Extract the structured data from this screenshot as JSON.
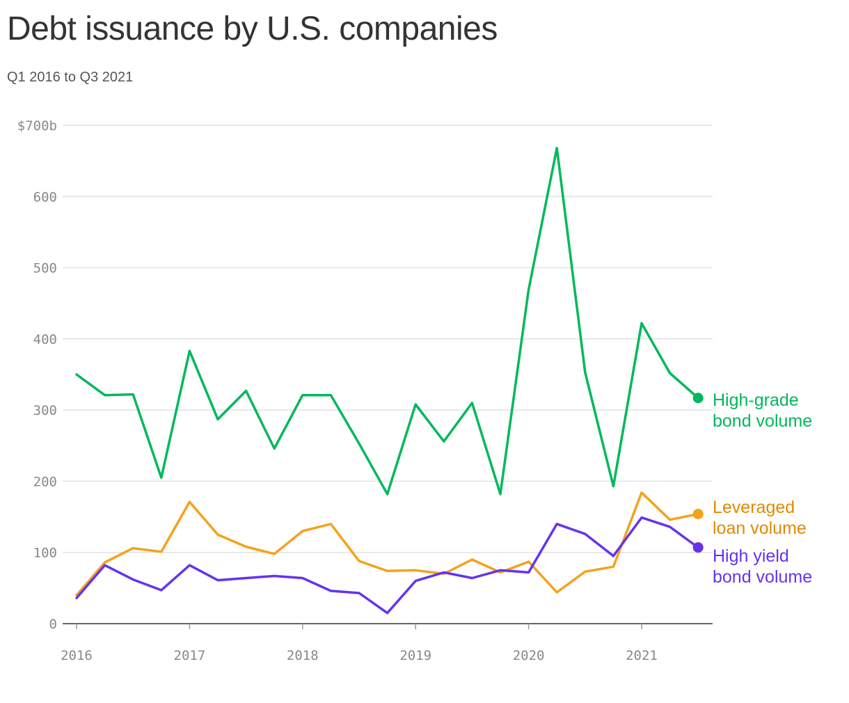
{
  "title": "Debt issuance by U.S. companies",
  "subtitle": "Q1 2016 to Q3 2021",
  "chart_data": {
    "type": "line",
    "title": "Debt issuance by U.S. companies",
    "subtitle": "Q1 2016 to Q3 2021",
    "x": [
      "Q1 2016",
      "Q2 2016",
      "Q3 2016",
      "Q4 2016",
      "Q1 2017",
      "Q2 2017",
      "Q3 2017",
      "Q4 2017",
      "Q1 2018",
      "Q2 2018",
      "Q3 2018",
      "Q4 2018",
      "Q1 2019",
      "Q2 2019",
      "Q3 2019",
      "Q4 2019",
      "Q1 2020",
      "Q2 2020",
      "Q3 2020",
      "Q4 2020",
      "Q1 2021",
      "Q2 2021",
      "Q3 2021"
    ],
    "x_ticks": [
      "2016",
      "2017",
      "2018",
      "2019",
      "2020",
      "2021"
    ],
    "y_ticks": [
      "0",
      "100",
      "200",
      "300",
      "400",
      "500",
      "600",
      "$700b"
    ],
    "ylim": [
      0,
      700
    ],
    "grid": true,
    "series": [
      {
        "name_lines": [
          "High-grade",
          "bond volume"
        ],
        "color": "#00b85c",
        "label_color": "#00b85c",
        "values": [
          350,
          321,
          322,
          205,
          383,
          287,
          327,
          246,
          321,
          321,
          253,
          182,
          308,
          256,
          310,
          182,
          469,
          668,
          353,
          193,
          422,
          352,
          317
        ]
      },
      {
        "name_lines": [
          "Leveraged",
          "loan volume"
        ],
        "color": "#f5a21b",
        "label_color": "#e08a00",
        "values": [
          40,
          86,
          106,
          101,
          171,
          125,
          108,
          98,
          130,
          140,
          88,
          74,
          75,
          70,
          90,
          72,
          87,
          44,
          73,
          80,
          184,
          146,
          154
        ]
      },
      {
        "name_lines": [
          "High yield",
          "bond volume"
        ],
        "color": "#6533ee",
        "label_color": "#6533ee",
        "values": [
          36,
          82,
          62,
          47,
          82,
          61,
          64,
          67,
          64,
          46,
          43,
          15,
          60,
          72,
          64,
          75,
          72,
          140,
          126,
          95,
          149,
          136,
          107
        ]
      }
    ]
  }
}
